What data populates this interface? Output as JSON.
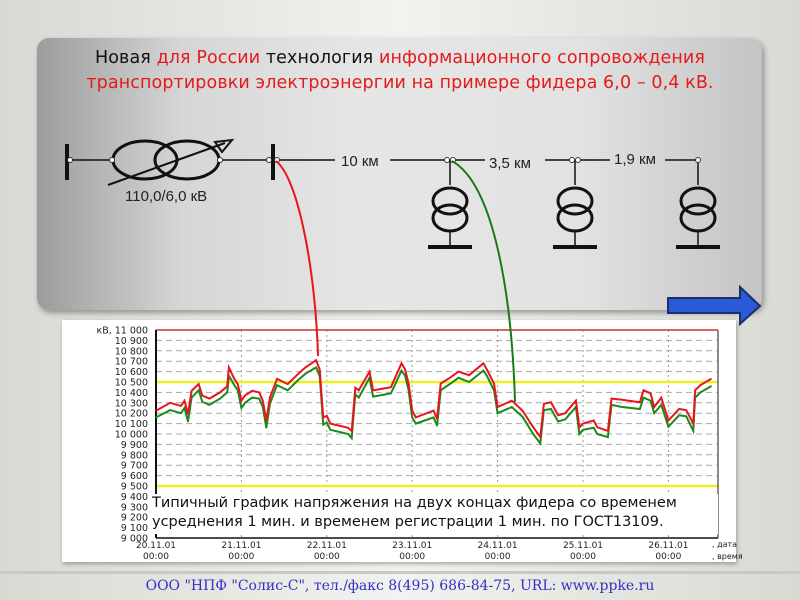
{
  "title": {
    "parts": [
      {
        "text": "Новая ",
        "color": "#111111"
      },
      {
        "text": "для России ",
        "color": "#e51a1a"
      },
      {
        "text": "технология ",
        "color": "#111111"
      },
      {
        "text": "информационного сопровождения транспортировки электроэнергии на примере фидера 6,0 – 0,4 кВ.",
        "color": "#e51a1a"
      }
    ]
  },
  "diagram": {
    "transformer_label": "110,0/6,0 кВ",
    "segments": [
      "10 км",
      "3,5 км",
      "1,9 км"
    ],
    "connector_colors": {
      "source_end": "#e8141e",
      "far_end": "#1a7a1a"
    }
  },
  "next_arrow": {
    "icon": "right-arrow-icon",
    "color": "#2a5bd7"
  },
  "chart_data": {
    "type": "line",
    "y_unit_label": "кВ,",
    "x_axis_label": [
      "дата",
      "время"
    ],
    "ylim": [
      9000,
      11000
    ],
    "y_ticks": [
      "9 000",
      "9 100",
      "9 200",
      "9 300",
      "9 400",
      "9 500",
      "9 600",
      "9 700",
      "9 800",
      "9 900",
      "10 000",
      "10 100",
      "10 200",
      "10 300",
      "10 400",
      "10 500",
      "10 600",
      "10 700",
      "10 800",
      "10 900",
      "11 000"
    ],
    "x_ticks": [
      {
        "date": "20.11.01",
        "time": "00:00"
      },
      {
        "date": "21.11.01",
        "time": "00:00"
      },
      {
        "date": "22.11.01",
        "time": "00:00"
      },
      {
        "date": "23.11.01",
        "time": "00:00"
      },
      {
        "date": "24.11.01",
        "time": "00:00"
      },
      {
        "date": "25.11.01",
        "time": "00:00"
      },
      {
        "date": "26.11.01",
        "time": "00:00"
      }
    ],
    "grid": true,
    "limits": [
      {
        "value": 10500,
        "color": "#f0f020"
      },
      {
        "value": 9500,
        "color": "#f0f020"
      },
      {
        "value": 11000,
        "color": "#c83232"
      }
    ],
    "series_colors": [
      "#e8141e",
      "#1a8a1a"
    ],
    "points": [
      [
        "20.11 00:00",
        10224,
        10160
      ],
      [
        "20.11 04:00",
        10300,
        10230
      ],
      [
        "20.11 07:00",
        10270,
        10200
      ],
      [
        "20.11 08:00",
        10320,
        10250
      ],
      [
        "20.11 09:00",
        10190,
        10120
      ],
      [
        "20.11 10:00",
        10415,
        10350
      ],
      [
        "20.11 12:00",
        10480,
        10420
      ],
      [
        "20.11 13:00",
        10370,
        10310
      ],
      [
        "20.11 15:00",
        10340,
        10280
      ],
      [
        "20.11 18:00",
        10400,
        10340
      ],
      [
        "20.11 20:00",
        10460,
        10400
      ],
      [
        "20.11 20:30",
        10640,
        10560
      ],
      [
        "20.11 22:00",
        10530,
        10470
      ],
      [
        "20.11 23:00",
        10480,
        10420
      ],
      [
        "21.11 00:00",
        10320,
        10250
      ],
      [
        "21.11 01:00",
        10370,
        10300
      ],
      [
        "21.11 03:00",
        10415,
        10350
      ],
      [
        "21.11 05:00",
        10400,
        10340
      ],
      [
        "21.11 06:00",
        10320,
        10260
      ],
      [
        "21.11 07:00",
        10130,
        10060
      ],
      [
        "21.11 08:00",
        10350,
        10290
      ],
      [
        "21.11 10:00",
        10530,
        10470
      ],
      [
        "21.11 13:00",
        10480,
        10420
      ],
      [
        "21.11 16:00",
        10580,
        10520
      ],
      [
        "21.11 18:00",
        10640,
        10580
      ],
      [
        "21.11 21:00",
        10710,
        10640
      ],
      [
        "21.11 22:00",
        10620,
        10560
      ],
      [
        "21.11 23:00",
        10160,
        10090
      ],
      [
        "22.11 00:00",
        10175,
        10110
      ],
      [
        "22.11 01:00",
        10100,
        10040
      ],
      [
        "22.11 06:00",
        10060,
        10000
      ],
      [
        "22.11 07:00",
        10030,
        9960
      ],
      [
        "22.11 08:00",
        10445,
        10380
      ],
      [
        "22.11 09:00",
        10420,
        10350
      ],
      [
        "22.11 12:00",
        10600,
        10540
      ],
      [
        "22.11 13:00",
        10420,
        10360
      ],
      [
        "22.11 18:00",
        10450,
        10390
      ],
      [
        "22.11 21:00",
        10680,
        10610
      ],
      [
        "22.11 22:00",
        10620,
        10560
      ],
      [
        "22.11 23:00",
        10485,
        10420
      ],
      [
        "23.11 00:00",
        10225,
        10160
      ],
      [
        "23.11 01:00",
        10160,
        10100
      ],
      [
        "23.11 06:00",
        10225,
        10160
      ],
      [
        "23.11 07:00",
        10145,
        10080
      ],
      [
        "23.11 08:00",
        10485,
        10420
      ],
      [
        "23.11 11:00",
        10550,
        10490
      ],
      [
        "23.11 13:00",
        10600,
        10540
      ],
      [
        "23.11 16:00",
        10565,
        10500
      ],
      [
        "23.11 20:00",
        10680,
        10610
      ],
      [
        "23.11 21:00",
        10620,
        10560
      ],
      [
        "23.11 23:00",
        10485,
        10420
      ],
      [
        "24.11 00:00",
        10260,
        10200
      ],
      [
        "24.11 04:00",
        10320,
        10260
      ],
      [
        "24.11 07:00",
        10225,
        10165
      ],
      [
        "24.11 10:00",
        10065,
        10000
      ],
      [
        "24.11 12:00",
        9970,
        9910
      ],
      [
        "24.11 13:00",
        10290,
        10230
      ],
      [
        "24.11 15:00",
        10305,
        10240
      ],
      [
        "24.11 17:00",
        10180,
        10120
      ],
      [
        "24.11 19:00",
        10200,
        10140
      ],
      [
        "24.11 22:00",
        10320,
        10260
      ],
      [
        "24.11 23:00",
        10065,
        10000
      ],
      [
        "25.11 00:00",
        10100,
        10040
      ],
      [
        "25.11 03:00",
        10130,
        10060
      ],
      [
        "25.11 04:00",
        10065,
        10000
      ],
      [
        "25.11 07:00",
        10030,
        9970
      ],
      [
        "25.11 08:00",
        10340,
        10280
      ],
      [
        "25.11 11:00",
        10330,
        10260
      ],
      [
        "25.11 16:00",
        10305,
        10240
      ],
      [
        "25.11 17:00",
        10420,
        10350
      ],
      [
        "25.11 19:00",
        10390,
        10320
      ],
      [
        "25.11 20:00",
        10260,
        10200
      ],
      [
        "25.11 22:00",
        10350,
        10280
      ],
      [
        "26.11 00:00",
        10130,
        10070
      ],
      [
        "26.11 03:00",
        10240,
        10180
      ],
      [
        "26.11 05:00",
        10230,
        10170
      ],
      [
        "26.11 07:00",
        10100,
        10030
      ],
      [
        "26.11 07:30",
        10420,
        10350
      ],
      [
        "26.11 09:00",
        10470,
        10400
      ],
      [
        "26.11 12:00",
        10530,
        10460
      ]
    ],
    "annotation": [
      "Типичный график напряжения на двух концах фидера со временем",
      "усреднения 1 мин. и временем регистрации 1 мин. по ГОСТ13109."
    ]
  },
  "footer": "ООО \"НПФ \"Солис-С\", тел./факс 8(495) 686-84-75, URL: www.ppke.ru"
}
